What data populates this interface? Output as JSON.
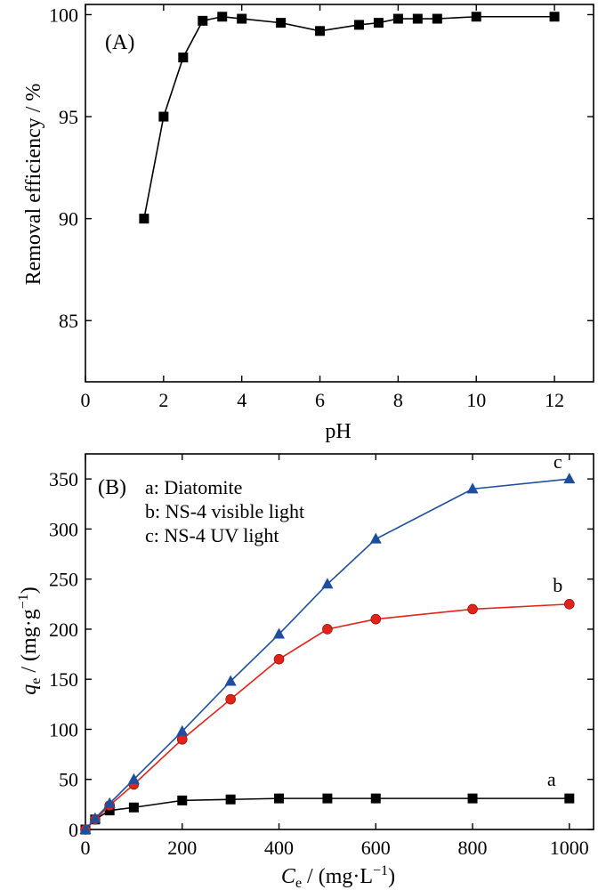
{
  "chart_data": [
    {
      "type": "line",
      "panel_label": "(A)",
      "xlabel": "pH",
      "ylabel": "Removal efficiency / %",
      "xlim": [
        0,
        13
      ],
      "ylim": [
        82,
        100.5
      ],
      "xticks": [
        0,
        2,
        4,
        6,
        8,
        10,
        12
      ],
      "yticks": [
        85,
        90,
        95,
        100
      ],
      "grid": false,
      "series": [
        {
          "marker": "square",
          "color": "#000000",
          "x": [
            1.5,
            2,
            2.5,
            3,
            3.5,
            4,
            5,
            6,
            7,
            7.5,
            8,
            8.5,
            9,
            10,
            12
          ],
          "y": [
            90.0,
            95.0,
            97.9,
            99.7,
            99.9,
            99.8,
            99.6,
            99.2,
            99.5,
            99.6,
            99.8,
            99.8,
            99.8,
            99.9,
            99.9
          ]
        }
      ]
    },
    {
      "type": "line",
      "panel_label": "(B)",
      "xlabel": {
        "sym": "C",
        "sub": "e",
        "rest": " / (mg·L",
        "sup": "−1",
        "end": ")"
      },
      "ylabel": {
        "sym": "q",
        "sub": "e",
        "rest": " / (mg·g",
        "sup": "−1",
        "end": ")"
      },
      "xlim": [
        0,
        1050
      ],
      "ylim": [
        0,
        375
      ],
      "xticks": [
        0,
        200,
        400,
        600,
        800,
        1000
      ],
      "yticks": [
        0,
        50,
        100,
        150,
        200,
        250,
        300,
        350
      ],
      "grid": false,
      "legend": {
        "position": "top-left",
        "entries": [
          "a: Diatomite",
          "b: NS-4 visible light",
          "c: NS-4 UV light"
        ]
      },
      "series": [
        {
          "label": "a",
          "marker": "square",
          "color": "#000000",
          "x": [
            0,
            20,
            50,
            100,
            200,
            300,
            400,
            500,
            600,
            800,
            1000
          ],
          "y": [
            0,
            10,
            19,
            22,
            29,
            30,
            31,
            31,
            31,
            31,
            31
          ]
        },
        {
          "label": "b",
          "marker": "circle",
          "color": "#e2231a",
          "x": [
            0,
            20,
            50,
            100,
            200,
            300,
            400,
            500,
            600,
            800,
            1000
          ],
          "y": [
            0,
            10,
            24,
            45,
            90,
            130,
            170,
            200,
            210,
            220,
            225
          ]
        },
        {
          "label": "c",
          "marker": "triangle",
          "color": "#1f4e9c",
          "x": [
            0,
            20,
            50,
            100,
            200,
            300,
            400,
            500,
            600,
            800,
            1000
          ],
          "y": [
            0,
            11,
            26,
            50,
            98,
            148,
            195,
            245,
            290,
            340,
            350
          ]
        }
      ]
    }
  ]
}
